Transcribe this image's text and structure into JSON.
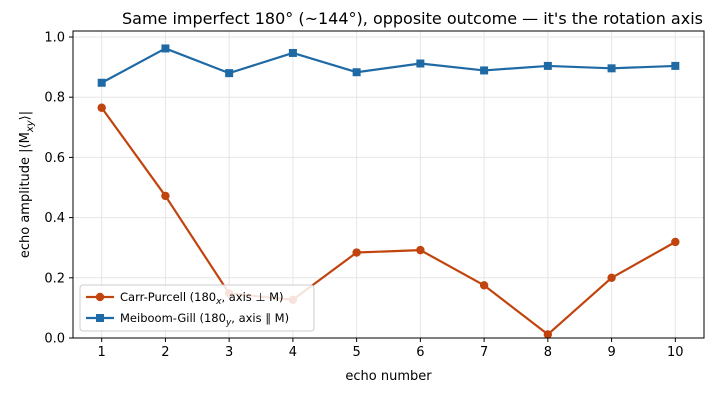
{
  "chart_data": {
    "type": "line",
    "title": "Same imperfect 180° (~144°), opposite outcome — it's the rotation axis",
    "xlabel": "echo number",
    "ylabel": "echo amplitude  |⟨M",
    "ylabel_sub": "xy",
    "ylabel_end": "⟩|",
    "xlim": [
      0.55,
      10.45
    ],
    "ylim": [
      0.0,
      1.02
    ],
    "xticks": [
      1,
      2,
      3,
      4,
      5,
      6,
      7,
      8,
      9,
      10
    ],
    "yticks": [
      0.0,
      0.2,
      0.4,
      0.6,
      0.8,
      1.0
    ],
    "ytick_labels": [
      "0.0",
      "0.2",
      "0.4",
      "0.6",
      "0.8",
      "1.0"
    ],
    "grid": true,
    "legend_position": "lower-left",
    "x": [
      1,
      2,
      3,
      4,
      5,
      6,
      7,
      8,
      9,
      10
    ],
    "series": [
      {
        "name": "Carr-Purcell (180",
        "name_sub": "x",
        "name_end": ", axis ⊥ M)",
        "color": "#c1440e",
        "marker": "circle",
        "values": [
          0.765,
          0.472,
          0.148,
          0.127,
          0.284,
          0.292,
          0.175,
          0.012,
          0.2,
          0.319
        ]
      },
      {
        "name": "Meiboom-Gill (180",
        "name_sub": "y",
        "name_end": ", axis ∥ M)",
        "color": "#1f6aa5",
        "marker": "square",
        "values": [
          0.848,
          0.962,
          0.88,
          0.947,
          0.883,
          0.912,
          0.889,
          0.904,
          0.896,
          0.904
        ]
      }
    ]
  }
}
